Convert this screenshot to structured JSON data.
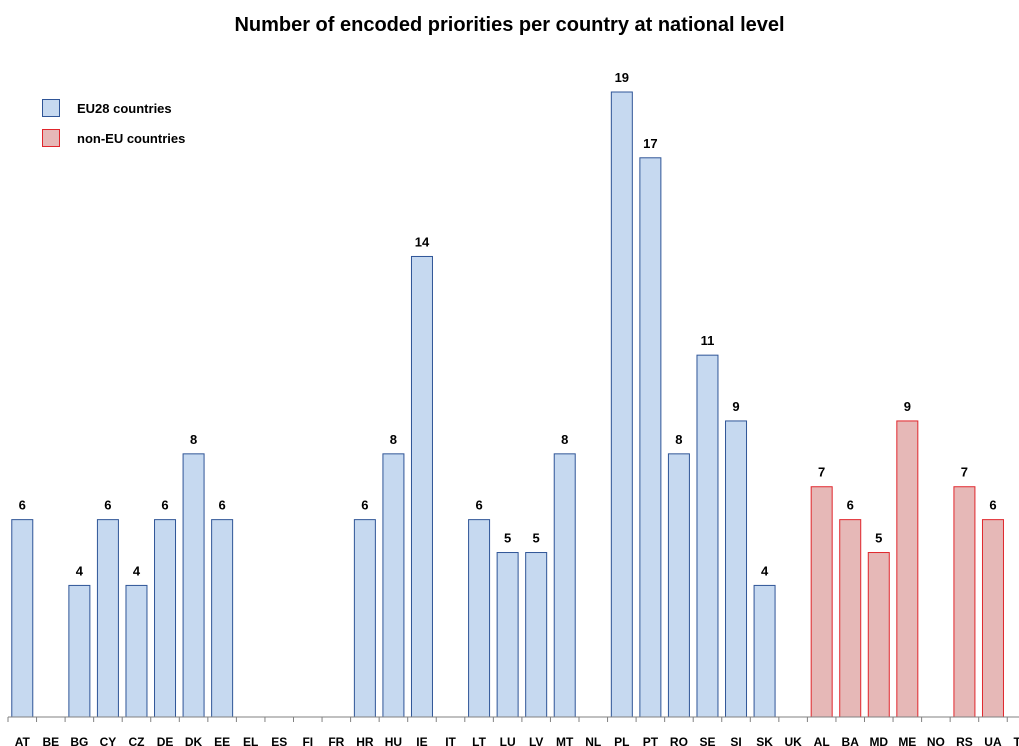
{
  "chart_data": {
    "type": "bar",
    "title": "Number of encoded priorities per country at national level",
    "categories": [
      "AT",
      "BE",
      "BG",
      "CY",
      "CZ",
      "DE",
      "DK",
      "EE",
      "EL",
      "ES",
      "FI",
      "FR",
      "HR",
      "HU",
      "IE",
      "IT",
      "LT",
      "LU",
      "LV",
      "MT",
      "NL",
      "PL",
      "PT",
      "RO",
      "SE",
      "SI",
      "SK",
      "UK",
      "AL",
      "BA",
      "MD",
      "ME",
      "NO",
      "RS",
      "UA",
      "TR"
    ],
    "series": [
      {
        "name": "EU28 countries",
        "color": "#c6d9f0",
        "stroke": "#2f5597",
        "values": [
          6,
          null,
          4,
          6,
          4,
          6,
          8,
          6,
          null,
          null,
          null,
          null,
          6,
          8,
          14,
          null,
          6,
          5,
          5,
          8,
          null,
          19,
          17,
          8,
          11,
          9,
          4,
          null,
          null,
          null,
          null,
          null,
          null,
          null,
          null,
          null
        ]
      },
      {
        "name": "non-EU countries",
        "color": "#e6b8b7",
        "stroke": "#e0262c",
        "values": [
          null,
          null,
          null,
          null,
          null,
          null,
          null,
          null,
          null,
          null,
          null,
          null,
          null,
          null,
          null,
          null,
          null,
          null,
          null,
          null,
          null,
          null,
          null,
          null,
          null,
          null,
          null,
          null,
          7,
          6,
          5,
          9,
          null,
          7,
          6,
          null
        ]
      }
    ],
    "ylim": [
      0,
      19
    ],
    "xlabel": "",
    "ylabel": "",
    "legend": {
      "position": "top-left"
    },
    "grid": false
  }
}
